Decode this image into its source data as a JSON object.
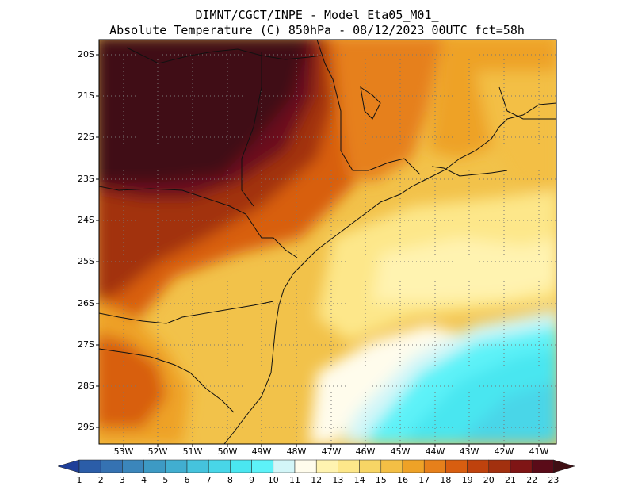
{
  "title": {
    "line1": "DIMNT/CGCT/INPE -  Model Eta05_M01_",
    "line2": "Absolute Temperature (C) 850hPa -  08/12/2023 00UTC fct=58h"
  },
  "lat_labels": [
    "20S",
    "21S",
    "22S",
    "23S",
    "24S",
    "25S",
    "26S",
    "27S",
    "28S",
    "29S"
  ],
  "lon_labels": [
    "53W",
    "52W",
    "51W",
    "50W",
    "49W",
    "48W",
    "47W",
    "46W",
    "45W",
    "44W",
    "43W",
    "42W",
    "41W"
  ],
  "colorbar": {
    "labels": [
      "1",
      "2",
      "3",
      "4",
      "5",
      "6",
      "7",
      "8",
      "9",
      "10",
      "11",
      "12",
      "13",
      "14",
      "15",
      "16",
      "17",
      "18",
      "19",
      "20",
      "21",
      "22",
      "23"
    ],
    "colors": [
      "#1f3f99",
      "#2b5da8",
      "#3572b2",
      "#3b86bb",
      "#3d9ac4",
      "#41aed0",
      "#45c3dd",
      "#48d6e8",
      "#4ae6f0",
      "#5df2f8",
      "#d3f6f8",
      "#fffcec",
      "#fff3b0",
      "#fde78a",
      "#f7d565",
      "#f3bf45",
      "#eea227",
      "#e6801b",
      "#d85e10",
      "#bf420d",
      "#a2300f",
      "#7f1515",
      "#5a0b18",
      "#3f0f14"
    ]
  }
}
